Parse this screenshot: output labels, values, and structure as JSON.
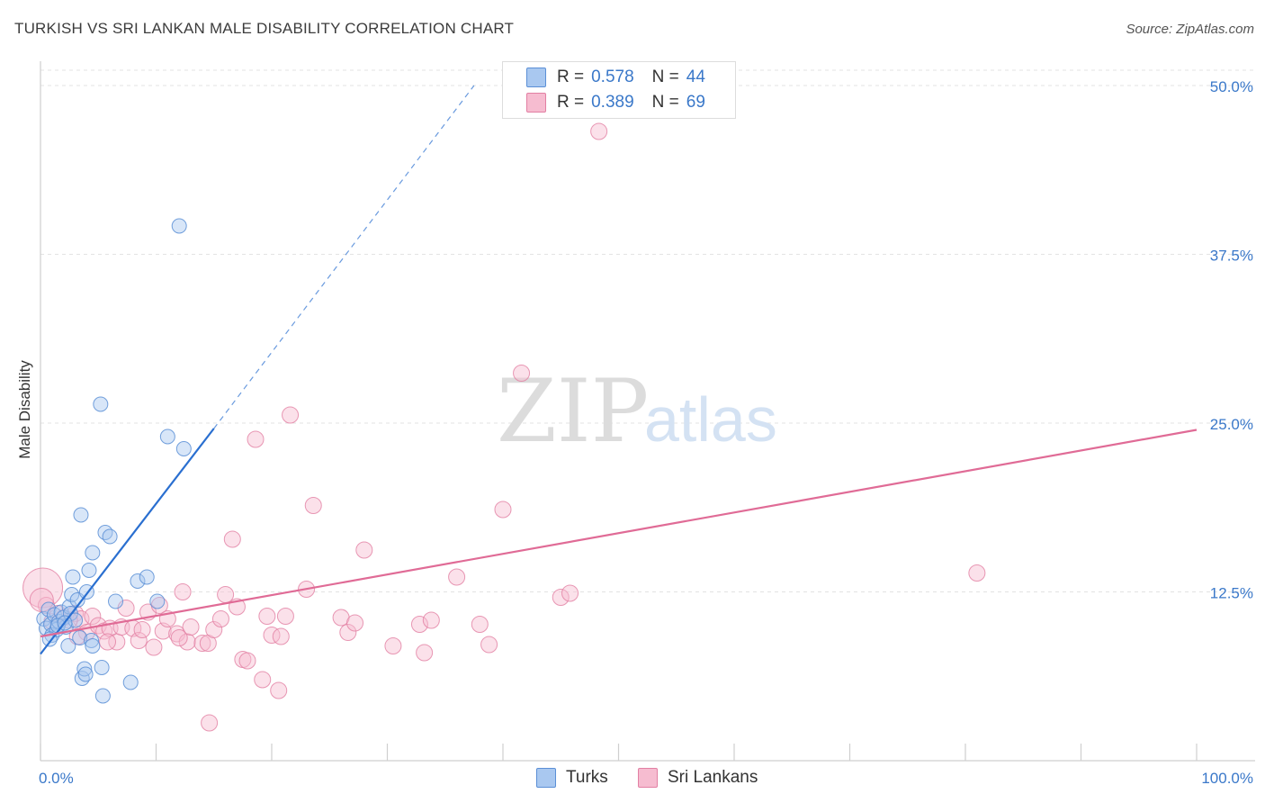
{
  "header": {
    "title": "TURKISH VS SRI LANKAN MALE DISABILITY CORRELATION CHART",
    "source": "Source: ZipAtlas.com"
  },
  "watermark": {
    "zip": "ZIP",
    "atlas": "atlas"
  },
  "legend": {
    "turks": {
      "r_label": "R =",
      "r_value": "0.578",
      "n_label": "N =",
      "n_value": "44"
    },
    "srilankans": {
      "r_label": "R =",
      "r_value": "0.389",
      "n_label": "N =",
      "n_value": "69"
    }
  },
  "bottom_legend": {
    "turks": "Turks",
    "srilankans": "Sri Lankans"
  },
  "colors": {
    "turks_fill": "#a9c8f0",
    "turks_stroke": "#5b8fd6",
    "turks_line": "#2a6fd0",
    "sri_fill": "#f6bcd0",
    "sri_stroke": "#e27fa3",
    "sri_line": "#e06b96",
    "axis_text": "#3a78c9"
  },
  "chart_data": {
    "type": "scatter",
    "title": "TURKISH VS SRI LANKAN MALE DISABILITY CORRELATION CHART",
    "xlabel": "",
    "ylabel": "Male Disability",
    "xlim": [
      0,
      100
    ],
    "ylim": [
      0,
      51
    ],
    "x_tick_labels": [
      "0.0%",
      "100.0%"
    ],
    "y_ticks": [
      12.5,
      25.0,
      37.5,
      50.0
    ],
    "y_tick_labels": [
      "12.5%",
      "25.0%",
      "37.5%",
      "50.0%"
    ],
    "series": [
      {
        "name": "Turks",
        "r": 0.578,
        "n": 44,
        "trend": {
          "x": [
            0,
            15
          ],
          "y": [
            7.9,
            24.6
          ],
          "extend_dashed_to": [
            37.5,
            50.0
          ]
        },
        "points": [
          [
            0.3,
            10.5
          ],
          [
            0.5,
            9.8
          ],
          [
            0.7,
            11.2
          ],
          [
            0.9,
            10.1
          ],
          [
            1.0,
            9.3
          ],
          [
            1.2,
            10.8
          ],
          [
            1.4,
            9.7
          ],
          [
            1.6,
            10.3
          ],
          [
            1.8,
            11.0
          ],
          [
            2.0,
            10.6
          ],
          [
            2.2,
            9.9
          ],
          [
            2.5,
            11.4
          ],
          [
            2.6,
            10.9
          ],
          [
            2.8,
            13.6
          ],
          [
            2.7,
            12.3
          ],
          [
            2.4,
            8.5
          ],
          [
            3.0,
            10.4
          ],
          [
            3.2,
            11.9
          ],
          [
            3.4,
            9.1
          ],
          [
            3.6,
            6.1
          ],
          [
            3.5,
            18.2
          ],
          [
            3.8,
            6.8
          ],
          [
            3.9,
            6.4
          ],
          [
            4.0,
            12.5
          ],
          [
            4.2,
            14.1
          ],
          [
            4.4,
            8.9
          ],
          [
            4.5,
            8.5
          ],
          [
            4.5,
            15.4
          ],
          [
            5.2,
            26.4
          ],
          [
            5.3,
            6.9
          ],
          [
            5.4,
            4.8
          ],
          [
            5.6,
            16.9
          ],
          [
            6.0,
            16.6
          ],
          [
            6.5,
            11.8
          ],
          [
            7.8,
            5.8
          ],
          [
            8.4,
            13.3
          ],
          [
            9.2,
            13.6
          ],
          [
            10.1,
            11.8
          ],
          [
            11.0,
            24.0
          ],
          [
            12.0,
            39.6
          ],
          [
            12.4,
            23.1
          ],
          [
            0.8,
            9.0
          ],
          [
            1.5,
            10.0
          ],
          [
            2.1,
            10.2
          ]
        ]
      },
      {
        "name": "Sri Lankans",
        "r": 0.389,
        "n": 69,
        "trend": {
          "x": [
            0,
            100
          ],
          "y": [
            9.2,
            24.5
          ]
        },
        "points": [
          [
            0.2,
            12.8
          ],
          [
            0.5,
            11.5
          ],
          [
            1.0,
            10.3
          ],
          [
            2.0,
            10.6
          ],
          [
            3.0,
            10.9
          ],
          [
            3.5,
            10.5
          ],
          [
            4.0,
            9.5
          ],
          [
            4.5,
            10.7
          ],
          [
            5.0,
            10.0
          ],
          [
            5.5,
            9.6
          ],
          [
            6.0,
            9.8
          ],
          [
            6.6,
            8.8
          ],
          [
            7.0,
            9.9
          ],
          [
            7.4,
            11.3
          ],
          [
            8.0,
            9.8
          ],
          [
            8.5,
            8.9
          ],
          [
            8.8,
            9.7
          ],
          [
            9.3,
            11.0
          ],
          [
            9.8,
            8.4
          ],
          [
            10.3,
            11.5
          ],
          [
            10.6,
            9.6
          ],
          [
            11.0,
            10.5
          ],
          [
            11.8,
            9.4
          ],
          [
            12.3,
            12.5
          ],
          [
            12.7,
            8.8
          ],
          [
            13.0,
            9.9
          ],
          [
            14.0,
            8.7
          ],
          [
            14.5,
            8.7
          ],
          [
            15.0,
            9.7
          ],
          [
            15.6,
            10.5
          ],
          [
            16.0,
            12.3
          ],
          [
            16.6,
            16.4
          ],
          [
            17.0,
            11.4
          ],
          [
            17.5,
            7.5
          ],
          [
            17.9,
            7.4
          ],
          [
            18.6,
            23.8
          ],
          [
            19.2,
            6.0
          ],
          [
            19.6,
            10.7
          ],
          [
            20.0,
            9.3
          ],
          [
            20.6,
            5.2
          ],
          [
            20.8,
            9.2
          ],
          [
            21.2,
            10.7
          ],
          [
            21.6,
            25.6
          ],
          [
            23.0,
            12.7
          ],
          [
            23.6,
            18.9
          ],
          [
            14.6,
            2.8
          ],
          [
            26.0,
            10.6
          ],
          [
            26.6,
            9.5
          ],
          [
            27.2,
            10.2
          ],
          [
            28.0,
            15.6
          ],
          [
            30.5,
            8.5
          ],
          [
            32.8,
            10.1
          ],
          [
            33.2,
            8.0
          ],
          [
            33.8,
            10.4
          ],
          [
            36.0,
            13.6
          ],
          [
            38.0,
            10.1
          ],
          [
            38.8,
            8.6
          ],
          [
            40.0,
            18.6
          ],
          [
            41.6,
            28.7
          ],
          [
            45.0,
            12.1
          ],
          [
            45.8,
            12.4
          ],
          [
            48.3,
            46.6
          ],
          [
            81.0,
            13.9
          ],
          [
            0.1,
            11.9
          ],
          [
            1.5,
            10.9
          ],
          [
            2.5,
            10.4
          ],
          [
            5.8,
            8.8
          ],
          [
            3.2,
            9.2
          ],
          [
            12.0,
            9.1
          ]
        ]
      }
    ]
  }
}
